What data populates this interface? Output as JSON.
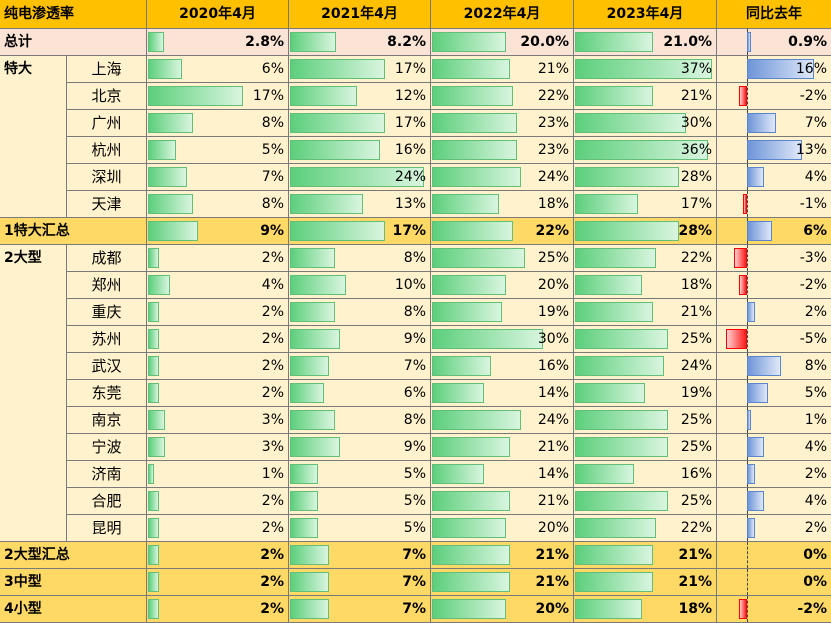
{
  "table": {
    "title": "纯电渗透率",
    "columns": [
      "2020年4月",
      "2021年4月",
      "2022年4月",
      "2023年4月",
      "同比去年"
    ],
    "total": {
      "label": "总计",
      "values": [
        "2.8%",
        "8.2%",
        "20.0%",
        "21.0%"
      ],
      "values_num": [
        2.8,
        8.2,
        20.0,
        21.0
      ],
      "yoy": "0.9%",
      "yoy_num": 0.9
    },
    "groups": [
      {
        "name": "特大",
        "rows": [
          {
            "city": "上海",
            "values": [
              "6%",
              "17%",
              "21%",
              "37%"
            ],
            "values_num": [
              6,
              17,
              21,
              37
            ],
            "yoy": "16%",
            "yoy_num": 16
          },
          {
            "city": "北京",
            "values": [
              "17%",
              "12%",
              "22%",
              "21%"
            ],
            "values_num": [
              17,
              12,
              22,
              21
            ],
            "yoy": "-2%",
            "yoy_num": -2
          },
          {
            "city": "广州",
            "values": [
              "8%",
              "17%",
              "23%",
              "30%"
            ],
            "values_num": [
              8,
              17,
              23,
              30
            ],
            "yoy": "7%",
            "yoy_num": 7
          },
          {
            "city": "杭州",
            "values": [
              "5%",
              "16%",
              "23%",
              "36%"
            ],
            "values_num": [
              5,
              16,
              23,
              36
            ],
            "yoy": "13%",
            "yoy_num": 13
          },
          {
            "city": "深圳",
            "values": [
              "7%",
              "24%",
              "24%",
              "28%"
            ],
            "values_num": [
              7,
              24,
              24,
              28
            ],
            "yoy": "4%",
            "yoy_num": 4
          },
          {
            "city": "天津",
            "values": [
              "8%",
              "13%",
              "18%",
              "17%"
            ],
            "values_num": [
              8,
              13,
              18,
              17
            ],
            "yoy": "-1%",
            "yoy_num": -1
          }
        ],
        "summary": {
          "label": "1特大汇总",
          "values": [
            "9%",
            "17%",
            "22%",
            "28%"
          ],
          "values_num": [
            9,
            17,
            22,
            28
          ],
          "yoy": "6%",
          "yoy_num": 6
        }
      },
      {
        "name": "2大型",
        "rows": [
          {
            "city": "成都",
            "values": [
              "2%",
              "8%",
              "25%",
              "22%"
            ],
            "values_num": [
              2,
              8,
              25,
              22
            ],
            "yoy": "-3%",
            "yoy_num": -3
          },
          {
            "city": "郑州",
            "values": [
              "4%",
              "10%",
              "20%",
              "18%"
            ],
            "values_num": [
              4,
              10,
              20,
              18
            ],
            "yoy": "-2%",
            "yoy_num": -2
          },
          {
            "city": "重庆",
            "values": [
              "2%",
              "8%",
              "19%",
              "21%"
            ],
            "values_num": [
              2,
              8,
              19,
              21
            ],
            "yoy": "2%",
            "yoy_num": 2
          },
          {
            "city": "苏州",
            "values": [
              "2%",
              "9%",
              "30%",
              "25%"
            ],
            "values_num": [
              2,
              9,
              30,
              25
            ],
            "yoy": "-5%",
            "yoy_num": -5
          },
          {
            "city": "武汉",
            "values": [
              "2%",
              "7%",
              "16%",
              "24%"
            ],
            "values_num": [
              2,
              7,
              16,
              24
            ],
            "yoy": "8%",
            "yoy_num": 8
          },
          {
            "city": "东莞",
            "values": [
              "2%",
              "6%",
              "14%",
              "19%"
            ],
            "values_num": [
              2,
              6,
              14,
              19
            ],
            "yoy": "5%",
            "yoy_num": 5
          },
          {
            "city": "南京",
            "values": [
              "3%",
              "8%",
              "24%",
              "25%"
            ],
            "values_num": [
              3,
              8,
              24,
              25
            ],
            "yoy": "1%",
            "yoy_num": 1
          },
          {
            "city": "宁波",
            "values": [
              "3%",
              "9%",
              "21%",
              "25%"
            ],
            "values_num": [
              3,
              9,
              21,
              25
            ],
            "yoy": "4%",
            "yoy_num": 4
          },
          {
            "city": "济南",
            "values": [
              "1%",
              "5%",
              "14%",
              "16%"
            ],
            "values_num": [
              1,
              5,
              14,
              16
            ],
            "yoy": "2%",
            "yoy_num": 2
          },
          {
            "city": "合肥",
            "values": [
              "2%",
              "5%",
              "21%",
              "25%"
            ],
            "values_num": [
              2,
              5,
              21,
              25
            ],
            "yoy": "4%",
            "yoy_num": 4
          },
          {
            "city": "昆明",
            "values": [
              "2%",
              "5%",
              "20%",
              "22%"
            ],
            "values_num": [
              2,
              5,
              20,
              22
            ],
            "yoy": "2%",
            "yoy_num": 2
          }
        ],
        "summary": {
          "label": "2大型汇总",
          "values": [
            "2%",
            "7%",
            "21%",
            "21%"
          ],
          "values_num": [
            2,
            7,
            21,
            21
          ],
          "yoy": "0%",
          "yoy_num": 0
        }
      }
    ],
    "tail": [
      {
        "label": "3中型",
        "values": [
          "2%",
          "7%",
          "21%",
          "21%"
        ],
        "values_num": [
          2,
          7,
          21,
          21
        ],
        "yoy": "0%",
        "yoy_num": 0
      },
      {
        "label": "4小型",
        "values": [
          "2%",
          "7%",
          "20%",
          "18%"
        ],
        "values_num": [
          2,
          7,
          20,
          18
        ],
        "yoy": "-2%",
        "yoy_num": -2
      }
    ]
  },
  "colors": {
    "header": "#ffc000",
    "body": "#fff2cc",
    "summary": "#ffd966",
    "total": "#fbe4d5",
    "bar_green": "#63be7b",
    "bar_blue": "#5b85cf",
    "bar_red": "#ff0000"
  }
}
